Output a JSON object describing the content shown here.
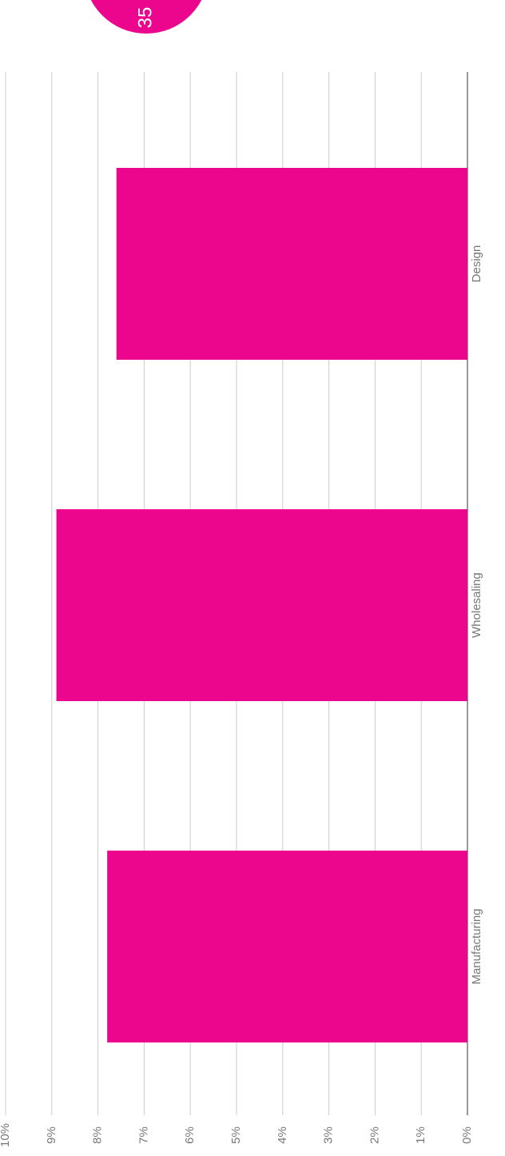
{
  "badge": "35",
  "chart_data": {
    "type": "bar",
    "orientation": "rotated",
    "categories": [
      "Manufacturing",
      "Wholesaling",
      "Design"
    ],
    "values": [
      7.8,
      8.9,
      7.6
    ],
    "color": "#ec068d",
    "ylim": [
      0,
      10
    ],
    "yticks": [
      {
        "value": 0,
        "label": "0%"
      },
      {
        "value": 1,
        "label": "1%"
      },
      {
        "value": 2,
        "label": "2%"
      },
      {
        "value": 3,
        "label": "3%"
      },
      {
        "value": 4,
        "label": "4%"
      },
      {
        "value": 5,
        "label": "5%"
      },
      {
        "value": 6,
        "label": "6%"
      },
      {
        "value": 7,
        "label": "7%"
      },
      {
        "value": 8,
        "label": "8%"
      },
      {
        "value": 9,
        "label": "9%"
      },
      {
        "value": 10,
        "label": "10%"
      }
    ],
    "grid": true
  }
}
